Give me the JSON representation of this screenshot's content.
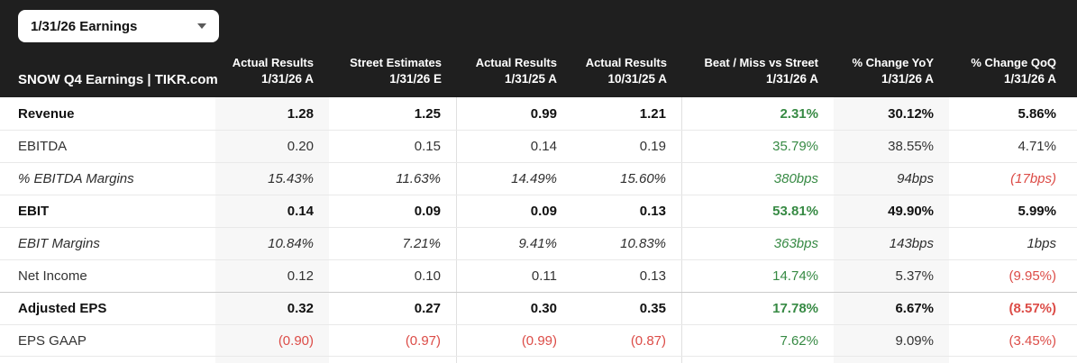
{
  "colors": {
    "header_bg": "#1f1f1f",
    "positive": "#378a44",
    "negative": "#dc4c47",
    "shade": "#f7f7f7",
    "divider": "#e0e0e0",
    "row_border": "#e9e9e9",
    "strong_row_border": "#cccccc"
  },
  "dropdown": {
    "label": "1/31/26 Earnings",
    "icon": "chevron-down"
  },
  "table": {
    "corner_label": "SNOW Q4 Earnings | TIKR.com",
    "columns": [
      {
        "line1": "Actual Results",
        "line2": "1/31/26 A"
      },
      {
        "line1": "Street Estimates",
        "line2": "1/31/26 E"
      },
      {
        "line1": "Actual Results",
        "line2": "1/31/25 A"
      },
      {
        "line1": "Actual Results",
        "line2": "10/31/25 A"
      },
      {
        "line1": "Beat / Miss vs Street",
        "line2": "1/31/26 A"
      },
      {
        "line1": "% Change YoY",
        "line2": "1/31/26 A"
      },
      {
        "line1": "% Change QoQ",
        "line2": "1/31/26 A"
      }
    ],
    "shaded_column_indexes": [
      0,
      5
    ],
    "divider_after_column_indexes": [
      1,
      3
    ],
    "rows": [
      {
        "label": "Revenue",
        "emphasis": "bold",
        "cells": [
          {
            "text": "1.28"
          },
          {
            "text": "1.25"
          },
          {
            "text": "0.99"
          },
          {
            "text": "1.21"
          },
          {
            "text": "2.31%",
            "tone": "positive"
          },
          {
            "text": "30.12%"
          },
          {
            "text": "5.86%"
          }
        ]
      },
      {
        "label": "EBITDA",
        "emphasis": "regular",
        "cells": [
          {
            "text": "0.20"
          },
          {
            "text": "0.15"
          },
          {
            "text": "0.14"
          },
          {
            "text": "0.19"
          },
          {
            "text": "35.79%",
            "tone": "positive"
          },
          {
            "text": "38.55%"
          },
          {
            "text": "4.71%"
          }
        ]
      },
      {
        "label": "% EBITDA Margins",
        "emphasis": "italic",
        "cells": [
          {
            "text": "15.43%"
          },
          {
            "text": "11.63%"
          },
          {
            "text": "14.49%"
          },
          {
            "text": "15.60%"
          },
          {
            "text": "380bps",
            "tone": "positive"
          },
          {
            "text": "94bps"
          },
          {
            "text": "(17bps)",
            "tone": "negative"
          }
        ]
      },
      {
        "label": "EBIT",
        "emphasis": "bold",
        "cells": [
          {
            "text": "0.14"
          },
          {
            "text": "0.09"
          },
          {
            "text": "0.09"
          },
          {
            "text": "0.13"
          },
          {
            "text": "53.81%",
            "tone": "positive"
          },
          {
            "text": "49.90%"
          },
          {
            "text": "5.99%"
          }
        ]
      },
      {
        "label": "EBIT Margins",
        "emphasis": "italic",
        "cells": [
          {
            "text": "10.84%"
          },
          {
            "text": "7.21%"
          },
          {
            "text": "9.41%"
          },
          {
            "text": "10.83%"
          },
          {
            "text": "363bps",
            "tone": "positive"
          },
          {
            "text": "143bps"
          },
          {
            "text": "1bps"
          }
        ]
      },
      {
        "label": "Net Income",
        "emphasis": "regular",
        "cells": [
          {
            "text": "0.12"
          },
          {
            "text": "0.10"
          },
          {
            "text": "0.11"
          },
          {
            "text": "0.13"
          },
          {
            "text": "14.74%",
            "tone": "positive"
          },
          {
            "text": "5.37%"
          },
          {
            "text": "(9.95%)",
            "tone": "negative"
          }
        ]
      },
      {
        "label": "Adjusted EPS",
        "emphasis": "bold",
        "strong_top_border": true,
        "cells": [
          {
            "text": "0.32"
          },
          {
            "text": "0.27"
          },
          {
            "text": "0.30"
          },
          {
            "text": "0.35"
          },
          {
            "text": "17.78%",
            "tone": "positive"
          },
          {
            "text": "6.67%"
          },
          {
            "text": "(8.57%)",
            "tone": "negative"
          }
        ]
      },
      {
        "label": "EPS GAAP",
        "emphasis": "regular",
        "cells": [
          {
            "text": "(0.90)",
            "tone": "negative"
          },
          {
            "text": "(0.97)",
            "tone": "negative"
          },
          {
            "text": "(0.99)",
            "tone": "negative"
          },
          {
            "text": "(0.87)",
            "tone": "negative"
          },
          {
            "text": "7.62%",
            "tone": "positive"
          },
          {
            "text": "9.09%"
          },
          {
            "text": "(3.45%)",
            "tone": "negative"
          }
        ]
      }
    ]
  }
}
